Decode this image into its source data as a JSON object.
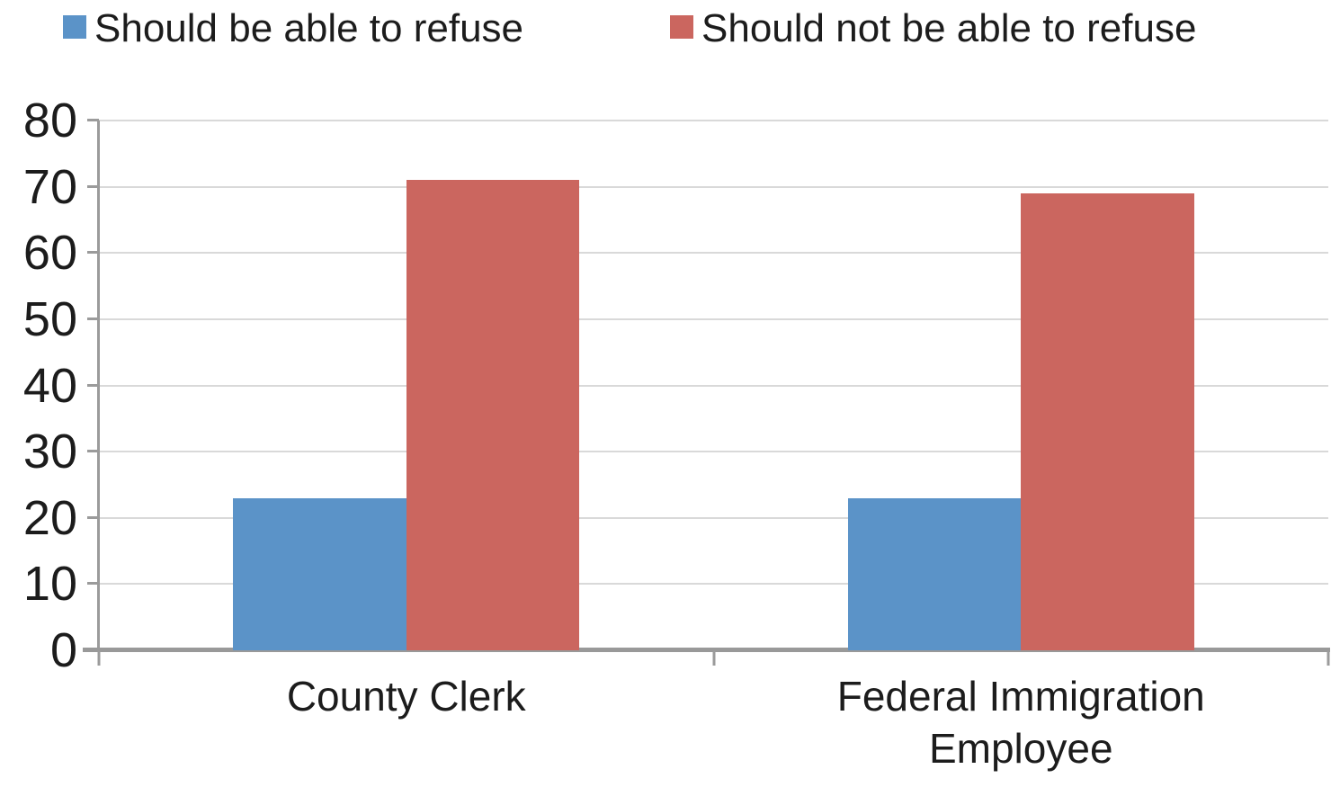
{
  "chart_data": {
    "type": "bar",
    "title": "",
    "xlabel": "",
    "ylabel": "",
    "categories": [
      "County Clerk",
      "Federal Immigration Employee"
    ],
    "series": [
      {
        "name": "Should be able to refuse",
        "color": "#5B93C8",
        "values": [
          23,
          23
        ]
      },
      {
        "name": "Should not be able to refuse",
        "color": "#CB665F",
        "values": [
          71,
          69
        ]
      }
    ],
    "ylim": [
      0,
      80
    ],
    "ytick_step": 10,
    "yticks": [
      0,
      10,
      20,
      30,
      40,
      50,
      60,
      70,
      80
    ],
    "grid": true,
    "legend_position": "top",
    "bar_width_fraction": 0.282,
    "group_side_padding_fraction": 0.218
  },
  "colors": {
    "background": "#FFFFFF",
    "gridline": "#D9D9D9",
    "axis": "#9B9B9B",
    "text": "#1C1C1C"
  }
}
